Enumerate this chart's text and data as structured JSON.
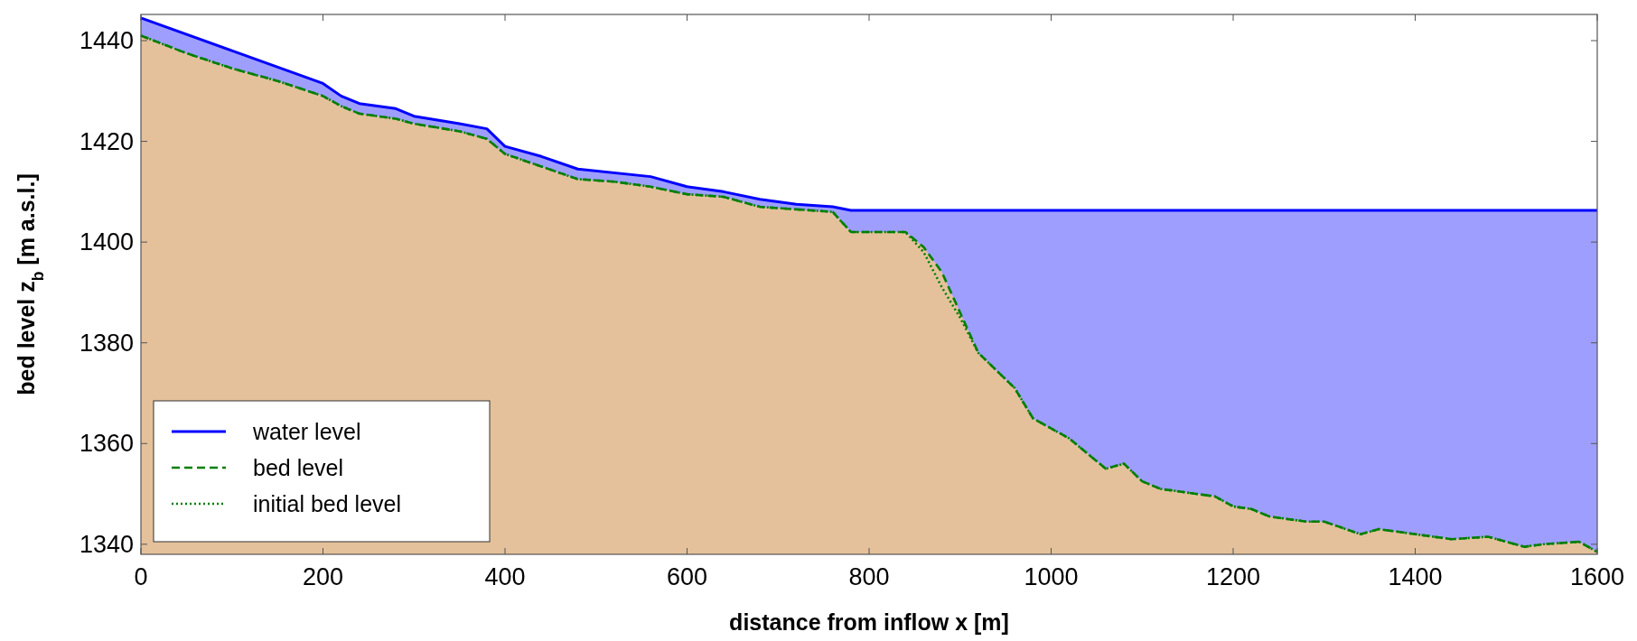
{
  "chart_data": {
    "type": "line",
    "xlabel": "distance from inflow x [m]",
    "ylabel": "bed level z$_{b}$ [m a.s.l.]",
    "xlim": [
      0,
      1600
    ],
    "xticks": [
      0,
      200,
      400,
      600,
      800,
      1000,
      1200,
      1400,
      1600
    ],
    "ylim": [
      1338,
      1445.2
    ],
    "yticks": [
      1340,
      1360,
      1380,
      1400,
      1420,
      1440
    ],
    "legend": "bottom left",
    "series": [
      {
        "name": "water level",
        "type": "area",
        "color": "#0000ff",
        "line_style": "solid",
        "x": [
          0,
          100,
          200,
          220,
          240,
          280,
          300,
          350,
          380,
          400,
          440,
          480,
          560,
          600,
          640,
          680,
          720,
          760,
          780,
          1600
        ],
        "values": [
          1444.5,
          1438,
          1431.5,
          1429,
          1427.5,
          1426.5,
          1425,
          1423.5,
          1422.5,
          1419,
          1417,
          1414.5,
          1413,
          1411,
          1410,
          1408.5,
          1407.5,
          1407,
          1406.3,
          1406.3
        ]
      },
      {
        "type": "area",
        "color": "#e4c19b",
        "x": [
          0,
          50,
          100,
          150,
          200,
          220,
          240,
          280,
          300,
          350,
          380,
          400,
          440,
          480,
          520,
          560,
          600,
          640,
          680,
          720,
          760,
          780,
          840,
          860,
          880,
          920,
          960,
          980,
          1020,
          1060,
          1080,
          1100,
          1120,
          1180,
          1200,
          1220,
          1240,
          1280,
          1300,
          1340,
          1360,
          1400,
          1440,
          1480,
          1520,
          1540,
          1580,
          1600
        ],
        "values": [
          1441,
          1437.5,
          1434.5,
          1432,
          1429,
          1427,
          1425.5,
          1424.5,
          1423.5,
          1422,
          1420.5,
          1417.5,
          1415,
          1412.5,
          1412,
          1411,
          1409.5,
          1409,
          1407,
          1406.5,
          1406,
          1402,
          1402,
          1399,
          1394,
          1378,
          1371,
          1365,
          1361,
          1355,
          1356,
          1352.5,
          1351,
          1349.5,
          1347.5,
          1347,
          1345.5,
          1344.5,
          1344.5,
          1342,
          1343,
          1342,
          1341,
          1341.5,
          1339.5,
          1340,
          1340.5,
          1338.5
        ]
      },
      {
        "name": "bed level",
        "color": "#007f00",
        "line_style": "dashed",
        "x": [
          0,
          50,
          100,
          150,
          200,
          220,
          240,
          280,
          300,
          350,
          380,
          400,
          440,
          480,
          520,
          560,
          600,
          640,
          680,
          720,
          760,
          780,
          840,
          860,
          880,
          920,
          960,
          980,
          1020,
          1060,
          1080,
          1100,
          1120,
          1180,
          1200,
          1220,
          1240,
          1280,
          1300,
          1340,
          1360,
          1400,
          1440,
          1480,
          1520,
          1540,
          1580,
          1600
        ],
        "values": [
          1441,
          1437.5,
          1434.5,
          1432,
          1429,
          1427,
          1425.5,
          1424.5,
          1423.5,
          1422,
          1420.5,
          1417.5,
          1415,
          1412.5,
          1412,
          1411,
          1409.5,
          1409,
          1407,
          1406.5,
          1406,
          1402,
          1402,
          1399,
          1394,
          1378,
          1371,
          1365,
          1361,
          1355,
          1356,
          1352.5,
          1351,
          1349.5,
          1347.5,
          1347,
          1345.5,
          1344.5,
          1344.5,
          1342,
          1343,
          1342,
          1341,
          1341.5,
          1339.5,
          1340,
          1340.5,
          1338.5
        ]
      },
      {
        "name": "initial bed level",
        "color": "#007f00",
        "line_style": "dotted",
        "x": [
          0,
          50,
          100,
          150,
          200,
          220,
          240,
          280,
          300,
          350,
          380,
          400,
          440,
          480,
          520,
          560,
          600,
          640,
          680,
          720,
          760,
          780,
          840,
          860,
          880,
          900,
          920,
          960,
          980,
          1020,
          1060,
          1080,
          1100,
          1120,
          1180,
          1200,
          1220,
          1240,
          1280,
          1300,
          1340,
          1360,
          1400,
          1440,
          1480,
          1520,
          1540,
          1580,
          1600
        ],
        "values": [
          1441,
          1437.5,
          1434.5,
          1432,
          1429,
          1427,
          1425.5,
          1424.5,
          1423.5,
          1422,
          1420.5,
          1417.5,
          1415,
          1412.5,
          1412,
          1411,
          1409.5,
          1409,
          1407,
          1406.5,
          1406,
          1402,
          1402,
          1398,
          1391,
          1385,
          1378,
          1371,
          1365,
          1361,
          1355,
          1356,
          1352.5,
          1351,
          1349.5,
          1347.5,
          1347,
          1345.5,
          1344.5,
          1344.5,
          1342,
          1343,
          1342,
          1341,
          1341.5,
          1339.5,
          1340,
          1340.5,
          1338.5
        ]
      }
    ]
  }
}
